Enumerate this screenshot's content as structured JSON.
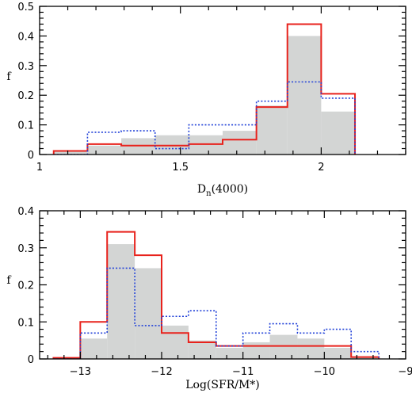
{
  "chart_data": [
    {
      "type": "histogram",
      "xlabel": "D",
      "xlabel_sub": "n",
      "xlabel_tail": "(4000)",
      "ylabel": "f",
      "xlim": [
        1,
        2.3
      ],
      "ylim": [
        0,
        0.5
      ],
      "xticks": [
        1,
        1.5,
        2
      ],
      "yticks": [
        0,
        0.1,
        0.2,
        0.3,
        0.4,
        0.5
      ],
      "grid": false,
      "series": [
        {
          "style": "filled",
          "color": "#d3d5d4",
          "bins": [
            [
              1.05,
              1.17,
              0.01
            ],
            [
              1.17,
              1.29,
              0.03
            ],
            [
              1.29,
              1.41,
              0.055
            ],
            [
              1.41,
              1.53,
              0.065
            ],
            [
              1.53,
              1.65,
              0.065
            ],
            [
              1.65,
              1.77,
              0.08
            ],
            [
              1.77,
              1.88,
              0.165
            ],
            [
              1.88,
              2.0,
              0.4
            ],
            [
              2.0,
              2.12,
              0.145
            ]
          ]
        },
        {
          "style": "solid",
          "color": "#e8221c",
          "bins": [
            [
              1.05,
              1.17,
              0.012
            ],
            [
              1.17,
              1.29,
              0.035
            ],
            [
              1.29,
              1.41,
              0.03
            ],
            [
              1.41,
              1.53,
              0.03
            ],
            [
              1.53,
              1.65,
              0.035
            ],
            [
              1.65,
              1.77,
              0.05
            ],
            [
              1.77,
              1.88,
              0.16
            ],
            [
              1.88,
              2.0,
              0.44
            ],
            [
              2.0,
              2.12,
              0.205
            ]
          ]
        },
        {
          "style": "dotted",
          "color": "#2040d8",
          "bins": [
            [
              1.05,
              1.17,
              0.0
            ],
            [
              1.17,
              1.29,
              0.075
            ],
            [
              1.29,
              1.41,
              0.08
            ],
            [
              1.41,
              1.53,
              0.02
            ],
            [
              1.53,
              1.65,
              0.1
            ],
            [
              1.65,
              1.77,
              0.1
            ],
            [
              1.77,
              1.88,
              0.18
            ],
            [
              1.88,
              2.0,
              0.245
            ],
            [
              2.0,
              2.12,
              0.19
            ]
          ]
        }
      ]
    },
    {
      "type": "histogram",
      "xlabel": "Log(SFR/M*)",
      "ylabel": "f",
      "xlim": [
        -13.5,
        -9
      ],
      "ylim": [
        0,
        0.4
      ],
      "xticks": [
        -13,
        -12,
        -11,
        -10,
        -9
      ],
      "yticks": [
        0,
        0.1,
        0.2,
        0.3,
        0.4
      ],
      "grid": false,
      "series": [
        {
          "style": "filled",
          "color": "#d3d5d4",
          "bins": [
            [
              -13.33,
              -13.0,
              0.0
            ],
            [
              -13.0,
              -12.67,
              0.055
            ],
            [
              -12.67,
              -12.33,
              0.31
            ],
            [
              -12.33,
              -12.0,
              0.245
            ],
            [
              -12.0,
              -11.67,
              0.09
            ],
            [
              -11.67,
              -11.33,
              0.05
            ],
            [
              -11.33,
              -11.0,
              0.03
            ],
            [
              -11.0,
              -10.67,
              0.045
            ],
            [
              -10.67,
              -10.33,
              0.065
            ],
            [
              -10.33,
              -10.0,
              0.055
            ],
            [
              -10.0,
              -9.67,
              0.03
            ],
            [
              -9.67,
              -9.33,
              0.005
            ]
          ]
        },
        {
          "style": "solid",
          "color": "#e8221c",
          "bins": [
            [
              -13.33,
              -13.0,
              0.003
            ],
            [
              -13.0,
              -12.67,
              0.1
            ],
            [
              -12.67,
              -12.33,
              0.343
            ],
            [
              -12.33,
              -12.0,
              0.28
            ],
            [
              -12.0,
              -11.67,
              0.07
            ],
            [
              -11.67,
              -11.33,
              0.045
            ],
            [
              -11.33,
              -11.0,
              0.035
            ],
            [
              -11.0,
              -10.67,
              0.035
            ],
            [
              -10.67,
              -10.33,
              0.035
            ],
            [
              -10.33,
              -10.0,
              0.035
            ],
            [
              -10.0,
              -9.67,
              0.035
            ],
            [
              -9.67,
              -9.33,
              0.005
            ]
          ]
        },
        {
          "style": "dotted",
          "color": "#2040d8",
          "bins": [
            [
              -13.33,
              -13.0,
              0.0
            ],
            [
              -13.0,
              -12.67,
              0.07
            ],
            [
              -12.67,
              -12.33,
              0.245
            ],
            [
              -12.33,
              -12.0,
              0.09
            ],
            [
              -12.0,
              -11.67,
              0.115
            ],
            [
              -11.67,
              -11.33,
              0.13
            ],
            [
              -11.33,
              -11.0,
              0.035
            ],
            [
              -11.0,
              -10.67,
              0.07
            ],
            [
              -10.67,
              -10.33,
              0.095
            ],
            [
              -10.33,
              -10.0,
              0.07
            ],
            [
              -10.0,
              -9.67,
              0.08
            ],
            [
              -9.67,
              -9.33,
              0.02
            ]
          ]
        }
      ]
    }
  ]
}
